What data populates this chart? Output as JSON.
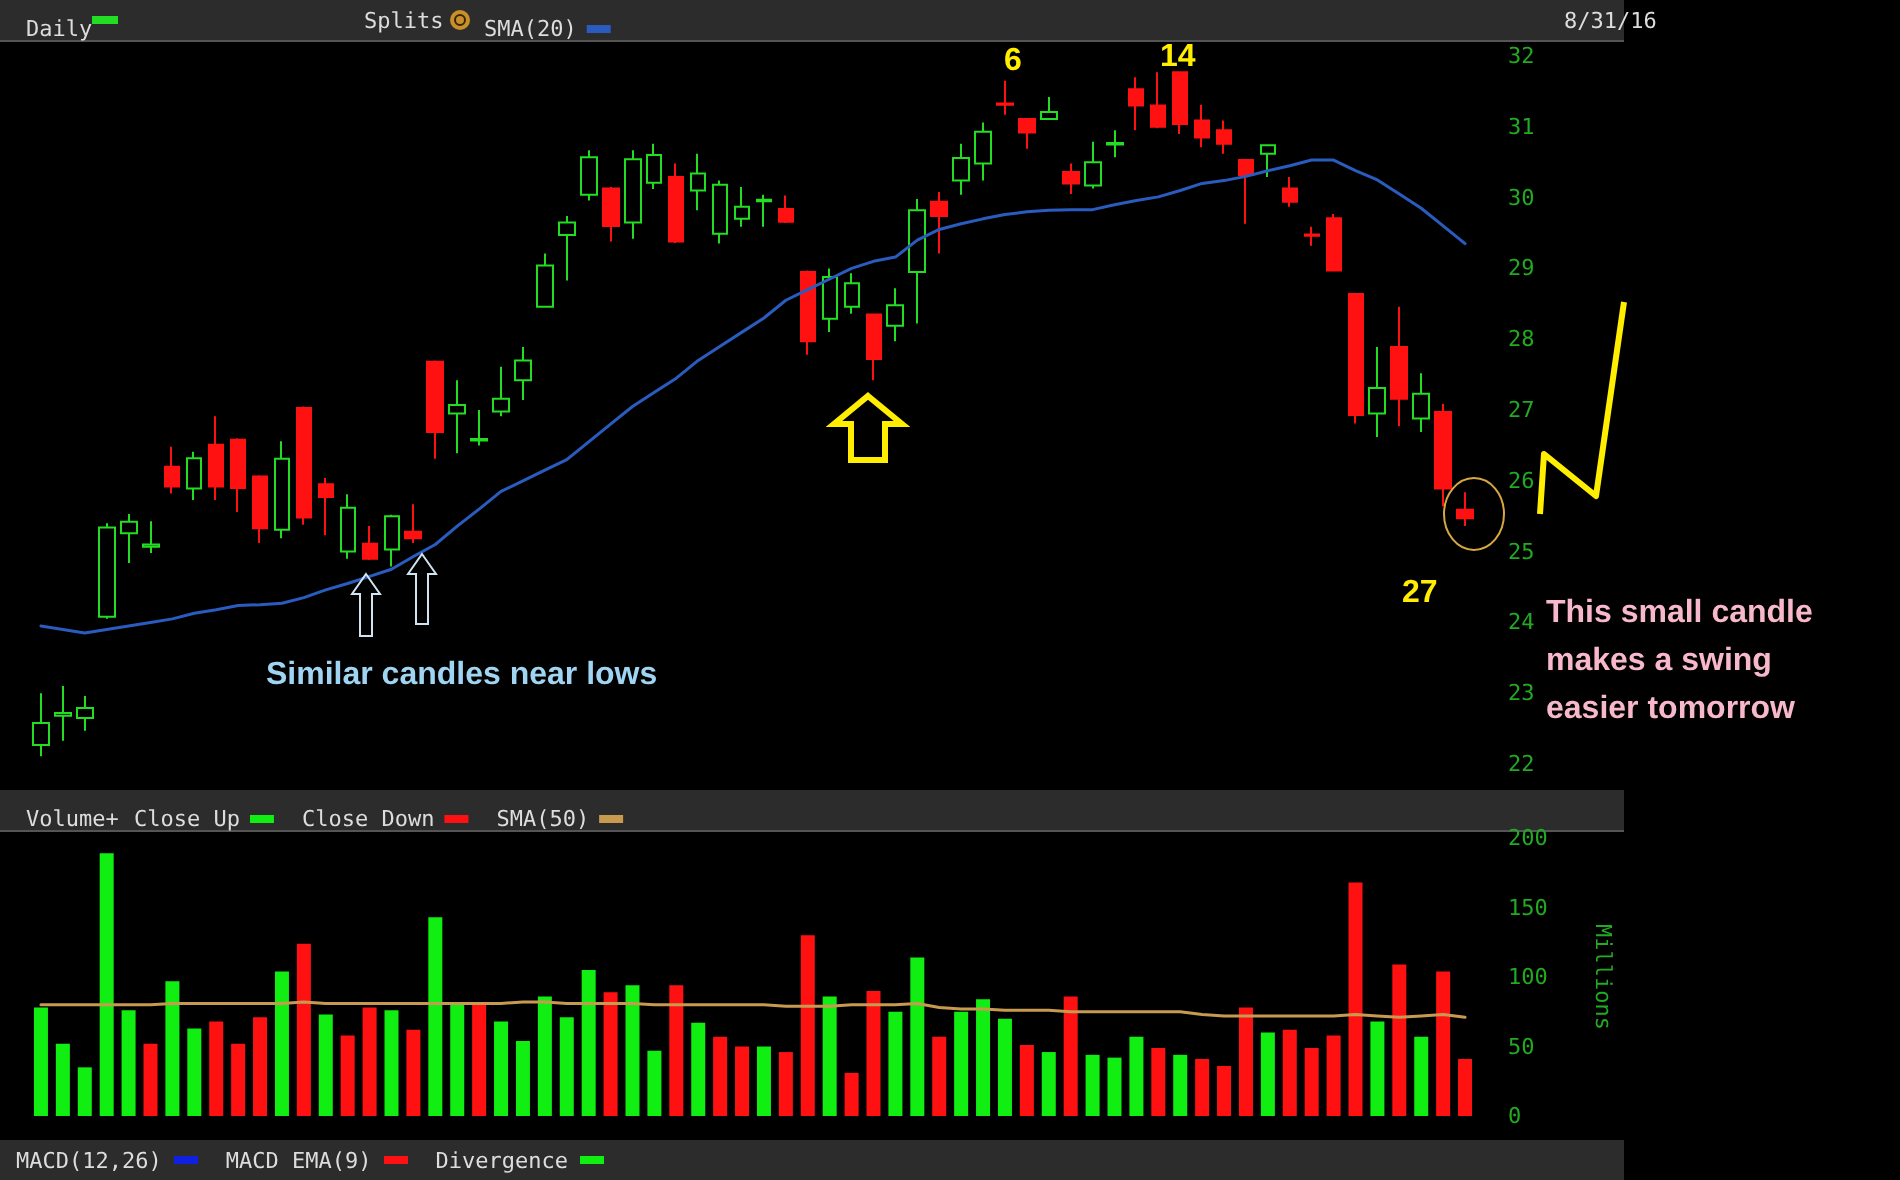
{
  "chart_data": [
    {
      "type": "candlestick",
      "title": "Daily",
      "legend": "top",
      "marker": "none",
      "tick_labels": "y",
      "categories": [
        null,
        null,
        null,
        null,
        null,
        null,
        null,
        null,
        null,
        null,
        null,
        null,
        null,
        null,
        null,
        null,
        null,
        null,
        null,
        null,
        null,
        null,
        null,
        null,
        null,
        null,
        null,
        null,
        null,
        null,
        null,
        null,
        null,
        null,
        null,
        null,
        null,
        null,
        null,
        null,
        null,
        null,
        null,
        null,
        null,
        null,
        null,
        null,
        null,
        null,
        null,
        null,
        null,
        null,
        null,
        null,
        null,
        null,
        null,
        null,
        null,
        null,
        null,
        null,
        null,
        null
      ],
      "ylim": [
        22,
        32
      ],
      "yticks": [
        22,
        23,
        24,
        25,
        26,
        27,
        28,
        29,
        30,
        31,
        32
      ],
      "series": [
        {
          "type": "candlestick",
          "ohlc": [
            [
              22.27,
              23.0,
              22.11,
              22.58
            ],
            [
              22.68,
              23.1,
              22.33,
              22.72
            ],
            [
              22.65,
              22.96,
              22.47,
              22.79
            ],
            [
              24.08,
              25.4,
              24.05,
              25.34
            ],
            [
              25.26,
              25.53,
              24.84,
              25.42
            ],
            [
              25.07,
              25.43,
              24.98,
              25.1
            ],
            [
              26.2,
              26.48,
              25.82,
              25.92
            ],
            [
              25.89,
              26.41,
              25.73,
              26.32
            ],
            [
              26.51,
              26.91,
              25.73,
              25.92
            ],
            [
              26.58,
              26.6,
              25.56,
              25.9
            ],
            [
              26.06,
              26.08,
              25.12,
              25.33
            ],
            [
              25.31,
              26.56,
              25.19,
              26.31
            ],
            [
              27.03,
              27.05,
              25.38,
              25.48
            ],
            [
              25.95,
              26.04,
              25.23,
              25.77
            ],
            [
              25.0,
              25.81,
              24.9,
              25.62
            ],
            [
              25.11,
              25.36,
              24.88,
              24.9
            ],
            [
              25.03,
              25.52,
              24.79,
              25.5
            ],
            [
              25.28,
              25.67,
              25.12,
              25.19
            ],
            [
              27.68,
              27.7,
              26.31,
              26.69
            ],
            [
              26.95,
              27.42,
              26.39,
              27.07
            ],
            [
              26.57,
              27.0,
              26.5,
              26.59
            ],
            [
              26.98,
              27.61,
              26.91,
              27.16
            ],
            [
              27.42,
              27.89,
              27.14,
              27.7
            ],
            [
              28.46,
              29.21,
              28.45,
              29.04
            ],
            [
              29.47,
              29.74,
              28.83,
              29.65
            ],
            [
              30.04,
              30.67,
              29.96,
              30.57
            ],
            [
              30.13,
              30.15,
              29.38,
              29.6
            ],
            [
              29.65,
              30.67,
              29.42,
              30.54
            ],
            [
              30.21,
              30.76,
              30.12,
              30.6
            ],
            [
              30.29,
              30.48,
              29.36,
              29.38
            ],
            [
              30.1,
              30.62,
              29.82,
              30.34
            ],
            [
              29.49,
              30.24,
              29.35,
              30.18
            ],
            [
              29.7,
              30.15,
              29.59,
              29.87
            ],
            [
              29.95,
              30.04,
              29.59,
              29.97
            ],
            [
              29.84,
              30.03,
              29.64,
              29.66
            ],
            [
              28.95,
              28.97,
              27.78,
              27.97
            ],
            [
              28.29,
              29.0,
              28.1,
              28.88
            ],
            [
              28.46,
              28.93,
              28.36,
              28.79
            ],
            [
              28.35,
              28.36,
              27.42,
              27.72
            ],
            [
              28.19,
              28.72,
              27.97,
              28.48
            ],
            [
              28.95,
              29.98,
              28.22,
              29.82
            ],
            [
              29.94,
              30.08,
              29.21,
              29.74
            ],
            [
              30.24,
              30.76,
              30.04,
              30.56
            ],
            [
              30.48,
              31.06,
              30.24,
              30.93
            ],
            [
              31.33,
              31.65,
              31.17,
              31.31
            ],
            [
              31.11,
              31.12,
              30.69,
              30.92
            ],
            [
              31.11,
              31.42,
              31.1,
              31.21
            ],
            [
              30.36,
              30.48,
              30.05,
              30.2
            ],
            [
              30.17,
              30.79,
              30.13,
              30.5
            ],
            [
              30.75,
              30.95,
              30.57,
              30.77
            ],
            [
              31.53,
              31.7,
              30.95,
              31.3
            ],
            [
              31.3,
              31.77,
              30.98,
              31.0
            ],
            [
              31.77,
              31.78,
              30.9,
              31.04
            ],
            [
              31.09,
              31.31,
              30.71,
              30.85
            ],
            [
              30.95,
              31.09,
              30.62,
              30.76
            ],
            [
              30.53,
              30.54,
              29.63,
              30.32
            ],
            [
              30.62,
              30.75,
              30.29,
              30.74
            ],
            [
              30.13,
              30.29,
              29.87,
              29.94
            ],
            [
              29.48,
              29.59,
              29.32,
              29.46
            ],
            [
              29.71,
              29.77,
              28.96,
              28.97
            ],
            [
              28.64,
              28.65,
              26.81,
              26.93
            ],
            [
              26.95,
              27.89,
              26.62,
              27.31
            ],
            [
              27.89,
              28.46,
              26.77,
              27.16
            ],
            [
              26.88,
              27.52,
              26.69,
              27.23
            ],
            [
              26.97,
              27.09,
              25.64,
              25.89
            ],
            [
              25.59,
              25.84,
              25.36,
              25.47
            ]
          ],
          "colors": [
            "#22dd22",
            "#22dd22",
            "#22dd22",
            "#22dd22",
            "#22dd22",
            "#22dd22",
            "#ff1111",
            "#22dd22",
            "#ff1111",
            "#ff1111",
            "#ff1111",
            "#22dd22",
            "#ff1111",
            "#ff1111",
            "#22dd22",
            "#ff1111",
            "#22dd22",
            "#ff1111",
            "#ff1111",
            "#22dd22",
            "#22dd22",
            "#22dd22",
            "#22dd22",
            "#22dd22",
            "#22dd22",
            "#22dd22",
            "#ff1111",
            "#22dd22",
            "#22dd22",
            "#ff1111",
            "#22dd22",
            "#22dd22",
            "#22dd22",
            "#22dd22",
            "#ff1111",
            "#ff1111",
            "#22dd22",
            "#22dd22",
            "#ff1111",
            "#22dd22",
            "#22dd22",
            "#ff1111",
            "#22dd22",
            "#22dd22",
            "#ff1111",
            "#ff1111",
            "#22dd22",
            "#ff1111",
            "#22dd22",
            "#22dd22",
            "#ff1111",
            "#ff1111",
            "#ff1111",
            "#ff1111",
            "#ff1111",
            "#ff1111",
            "#22dd22",
            "#ff1111",
            "#ff1111",
            "#ff1111",
            "#ff1111",
            "#22dd22",
            "#ff1111",
            "#22dd22",
            "#ff1111",
            "#ff1111"
          ]
        },
        {
          "type": "line",
          "name": "SMA(20)",
          "color": "#2a5cc0",
          "values": [
            23.95,
            23.9,
            23.85,
            23.9,
            23.95,
            24.0,
            24.05,
            24.13,
            24.18,
            24.24,
            24.25,
            24.27,
            24.35,
            24.46,
            24.55,
            24.65,
            24.75,
            24.93,
            25.1,
            25.36,
            25.6,
            25.85,
            26.0,
            26.15,
            26.3,
            26.55,
            26.8,
            27.05,
            27.25,
            27.45,
            27.7,
            27.9,
            28.1,
            28.3,
            28.55,
            28.7,
            28.85,
            29.0,
            29.1,
            29.16,
            29.4,
            29.55,
            29.63,
            29.7,
            29.76,
            29.8,
            29.82,
            29.83,
            29.83,
            29.9,
            29.96,
            30.01,
            30.1,
            30.2,
            30.24,
            30.3,
            30.38,
            30.45,
            30.53,
            30.53,
            30.38,
            30.25,
            30.05,
            29.85,
            29.6,
            29.35
          ]
        }
      ],
      "annotations": [
        "Splits",
        "8/31/16",
        "6",
        "14",
        "27",
        "Similar candles near lows",
        "This small candle makes a swing easier tomorrow"
      ]
    },
    {
      "type": "bar",
      "title": "Volume+",
      "ylabel": "Millions",
      "legend": "top left",
      "marker": "none",
      "tick_labels": "y",
      "categories": [
        null,
        null,
        null,
        null,
        null,
        null,
        null,
        null,
        null,
        null,
        null,
        null,
        null,
        null,
        null,
        null,
        null,
        null,
        null,
        null,
        null,
        null,
        null,
        null,
        null,
        null,
        null,
        null,
        null,
        null,
        null,
        null,
        null,
        null,
        null,
        null,
        null,
        null,
        null,
        null,
        null,
        null,
        null,
        null,
        null,
        null,
        null,
        null,
        null,
        null,
        null,
        null,
        null,
        null,
        null,
        null,
        null,
        null,
        null,
        null,
        null,
        null,
        null,
        null,
        null,
        null
      ],
      "ylim": [
        0,
        200
      ],
      "yticks": [
        0,
        50,
        100,
        150,
        200
      ],
      "series": [
        {
          "name": "Close Up",
          "color": "#11ee11",
          "values": [
            78,
            52,
            35,
            189,
            76,
            null,
            97,
            63,
            null,
            null,
            null,
            104,
            null,
            73,
            null,
            null,
            76,
            null,
            143,
            80,
            null,
            68,
            54,
            86,
            71,
            105,
            null,
            94,
            47,
            null,
            67,
            null,
            null,
            50,
            null,
            null,
            86,
            null,
            null,
            75,
            114,
            null,
            75,
            84,
            70,
            null,
            46,
            null,
            44,
            42,
            57,
            null,
            44,
            null,
            null,
            null,
            60,
            null,
            null,
            null,
            null,
            68,
            null,
            57,
            null,
            null
          ]
        },
        {
          "name": "Close Down",
          "color": "#ff1111",
          "values": [
            null,
            null,
            null,
            null,
            null,
            52,
            null,
            null,
            68,
            52,
            71,
            null,
            124,
            null,
            58,
            78,
            null,
            62,
            null,
            null,
            81,
            null,
            null,
            null,
            null,
            null,
            89,
            null,
            null,
            94,
            null,
            57,
            50,
            null,
            46,
            130,
            null,
            31,
            90,
            null,
            null,
            57,
            null,
            null,
            null,
            51,
            null,
            86,
            null,
            null,
            null,
            49,
            null,
            41,
            36,
            78,
            null,
            62,
            49,
            58,
            168,
            null,
            109,
            null,
            104,
            41
          ]
        },
        {
          "type": "line",
          "name": "SMA(50)",
          "color": "#c89a50",
          "values": [
            80,
            80,
            80,
            80,
            80,
            80,
            81,
            81,
            81,
            81,
            81,
            81,
            82,
            81,
            81,
            81,
            81,
            81,
            81,
            81,
            81,
            81,
            82,
            82,
            81,
            81,
            81,
            81,
            80,
            80,
            80,
            80,
            80,
            80,
            79,
            79,
            79,
            80,
            80,
            80,
            81,
            78,
            77,
            77,
            76,
            76,
            76,
            75,
            75,
            75,
            75,
            75,
            75,
            73,
            72,
            72,
            72,
            72,
            72,
            72,
            73,
            72,
            71,
            72,
            73,
            71
          ]
        }
      ],
      "annotations": [
        "MACD(12,26)",
        "MACD EMA(9)",
        "Divergence"
      ]
    }
  ]
}
